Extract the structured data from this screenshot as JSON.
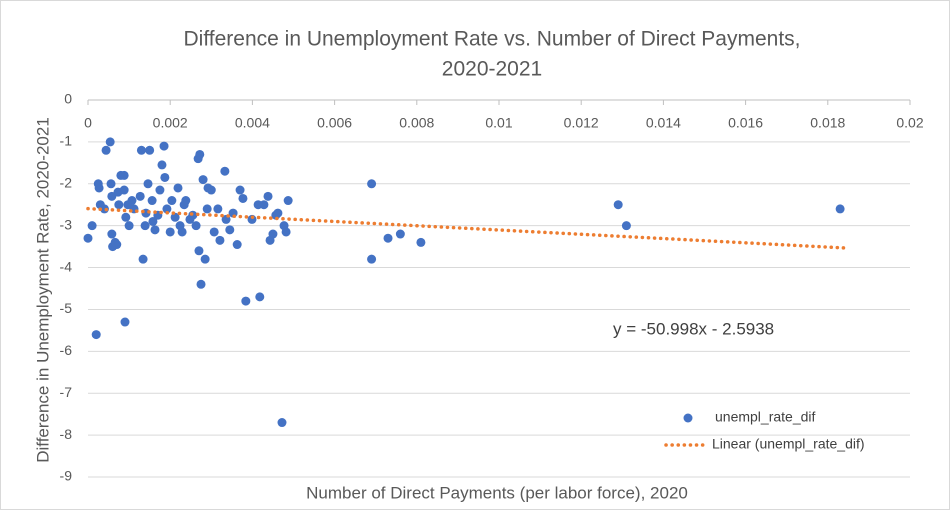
{
  "chart_data": {
    "type": "scatter",
    "title": [
      "Difference in Unemployment Rate vs. Number of Direct Payments,",
      "2020-2021"
    ],
    "x_label": "Number of Direct Payments (per labor force), 2020",
    "y_label": "Difference in Unemployment Rate, 2020-2021",
    "annotations": [
      "y = -50.998x - 2.5938"
    ],
    "xlim": [
      0,
      0.02
    ],
    "ylim": [
      -9,
      0
    ],
    "xticks": [
      0,
      0.002,
      0.004,
      0.006,
      0.008,
      0.01,
      0.012,
      0.014,
      0.016,
      0.018,
      0.02
    ],
    "yticks": [
      0,
      -1,
      -2,
      -3,
      -4,
      -5,
      -6,
      -7,
      -8,
      -9
    ],
    "grid": true,
    "series": [
      {
        "name": "unempl_rate_dif",
        "color": "#4472c4",
        "x": [
          0,
          0.0001,
          0.0002,
          0.00025,
          0.00027,
          0.0003,
          0.0004,
          0.00044,
          0.00054,
          0.00056,
          0.00058,
          0.00058,
          0.0006,
          0.00066,
          0.0007,
          0.00073,
          0.00075,
          0.0008,
          0.00088,
          0.00088,
          0.0009,
          0.00092,
          0.00097,
          0.001,
          0.00107,
          0.00112,
          0.00127,
          0.0013,
          0.00134,
          0.00139,
          0.00141,
          0.00146,
          0.0015,
          0.00156,
          0.00158,
          0.00163,
          0.0017,
          0.00175,
          0.0018,
          0.00185,
          0.00187,
          0.00192,
          0.002,
          0.00204,
          0.00212,
          0.00219,
          0.00224,
          0.00229,
          0.00234,
          0.00238,
          0.00248,
          0.00255,
          0.00263,
          0.00268,
          0.00272,
          0.0027,
          0.00275,
          0.0028,
          0.00285,
          0.0029,
          0.00292,
          0.003,
          0.00307,
          0.00316,
          0.00321,
          0.00333,
          0.00336,
          0.00345,
          0.00353,
          0.00363,
          0.0037,
          0.00377,
          0.00384,
          0.00399,
          0.00414,
          0.00418,
          0.00428,
          0.00438,
          0.00443,
          0.0045,
          0.00457,
          0.00462,
          0.00472,
          0.00477,
          0.00482,
          0.00487,
          0.0069,
          0.0069,
          0.0073,
          0.0076,
          0.0081,
          0.0129,
          0.0131,
          0.0183
        ],
        "values": [
          -3.3,
          -3.0,
          -5.6,
          -2.0,
          -2.1,
          -2.5,
          -2.6,
          -1.2,
          -1.0,
          -2.0,
          -2.3,
          -3.2,
          -3.5,
          -3.4,
          -3.45,
          -2.2,
          -2.5,
          -1.8,
          -1.8,
          -2.15,
          -5.3,
          -2.8,
          -2.5,
          -3.0,
          -2.4,
          -2.6,
          -2.3,
          -1.2,
          -3.8,
          -3.0,
          -2.7,
          -2.0,
          -1.2,
          -2.4,
          -2.9,
          -3.1,
          -2.75,
          -2.15,
          -1.55,
          -1.1,
          -1.85,
          -2.6,
          -3.15,
          -2.4,
          -2.8,
          -2.1,
          -3.0,
          -3.15,
          -2.5,
          -2.4,
          -2.85,
          -2.75,
          -3.0,
          -1.4,
          -1.3,
          -3.6,
          -4.4,
          -1.9,
          -3.8,
          -2.6,
          -2.1,
          -2.15,
          -3.15,
          -2.6,
          -3.35,
          -1.7,
          -2.85,
          -3.1,
          -2.7,
          -3.45,
          -2.15,
          -2.35,
          -4.8,
          -2.85,
          -2.5,
          -4.7,
          -2.5,
          -2.3,
          -3.35,
          -3.2,
          -2.75,
          -2.7,
          -7.7,
          -3.0,
          -3.15,
          -2.4,
          -2.0,
          -3.8,
          -3.3,
          -3.2,
          -3.4,
          -2.5,
          -3.0,
          -2.6
        ]
      },
      {
        "name": "Linear (unempl_rate_dif)",
        "color": "#ed7d31",
        "style": "dotted",
        "x": [
          0,
          0.0184
        ],
        "values": [
          -2.5938,
          -3.532
        ]
      }
    ]
  }
}
